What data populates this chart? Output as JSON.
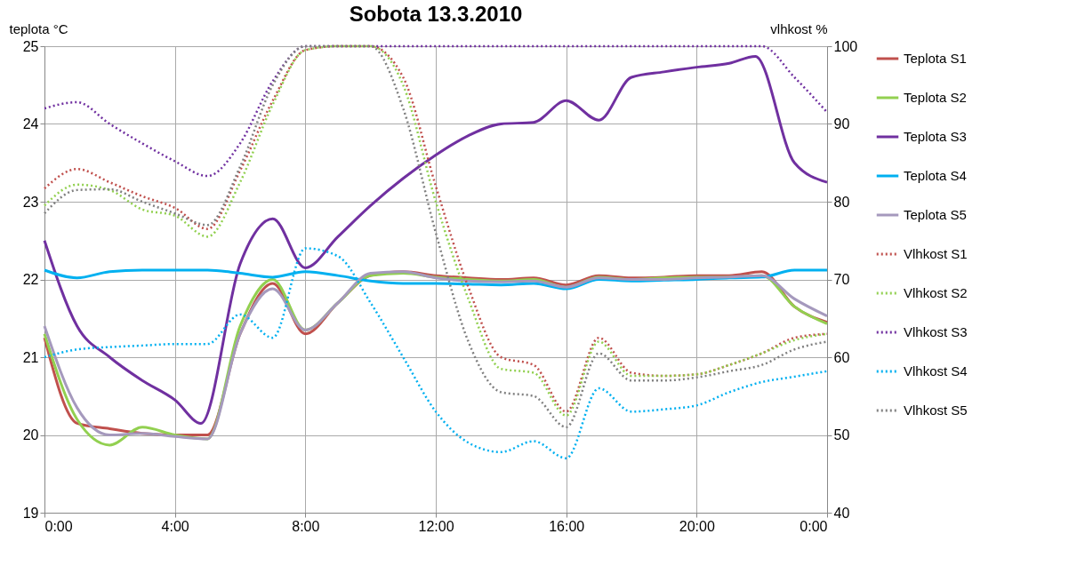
{
  "chart_data": {
    "type": "line",
    "title": "Sobota 13.3.2010",
    "ylabel": "teplota °C",
    "y2label": "vlhkost %",
    "x": [
      0,
      1,
      2,
      3,
      4,
      5,
      6,
      7,
      8,
      9,
      10,
      11,
      12,
      13,
      14,
      15,
      16,
      17,
      18,
      19,
      20,
      21,
      22,
      23,
      24
    ],
    "xlim": [
      0,
      24
    ],
    "xticks": [
      {
        "value": 0,
        "label": "0:00"
      },
      {
        "value": 4,
        "label": "4:00"
      },
      {
        "value": 8,
        "label": "8:00"
      },
      {
        "value": 12,
        "label": "12:00"
      },
      {
        "value": 16,
        "label": "16:00"
      },
      {
        "value": 20,
        "label": "20:00"
      },
      {
        "value": 24,
        "label": "0:00"
      }
    ],
    "ylim": [
      19,
      25
    ],
    "yticks": [
      19,
      20,
      21,
      22,
      23,
      24,
      25
    ],
    "y2lim": [
      40,
      100
    ],
    "y2ticks": [
      40,
      50,
      60,
      70,
      80,
      90,
      100
    ],
    "grid": true,
    "legend": "right",
    "marker": "none",
    "series": [
      {
        "name": "Teplota S1",
        "color": "#c0504d",
        "line_style": "solid",
        "values": [
          21.25,
          20.15,
          20.08,
          20.02,
          20.0,
          20.0,
          21.3,
          21.95,
          21.3,
          21.7,
          22.05,
          22.1,
          22.05,
          22.02,
          22.0,
          22.02,
          21.93,
          22.05,
          22.02,
          22.03,
          22.05,
          22.05,
          22.1,
          21.65,
          21.45
        ]
      },
      {
        "name": "Teplota S2",
        "color": "#92d050",
        "line_style": "solid",
        "values": [
          21.3,
          20.2,
          19.87,
          20.1,
          20.0,
          19.95,
          21.4,
          22.0,
          21.35,
          21.7,
          22.05,
          22.08,
          22.03,
          22.0,
          21.98,
          22.0,
          21.9,
          22.03,
          22.0,
          22.02,
          22.03,
          22.03,
          22.05,
          21.65,
          21.43
        ]
      },
      {
        "name": "Teplota S3",
        "color": "#7030a0",
        "line_style": "solid",
        "x": [
          0,
          1,
          2,
          3,
          4,
          4.8,
          6,
          7,
          8,
          9,
          10,
          11,
          12,
          13,
          14,
          15,
          16,
          17,
          18,
          19,
          20,
          21,
          21.8,
          23,
          24
        ],
        "values": [
          22.5,
          21.4,
          21.0,
          20.7,
          20.45,
          20.15,
          22.2,
          22.78,
          22.15,
          22.55,
          22.95,
          23.3,
          23.6,
          23.85,
          24.0,
          24.02,
          24.3,
          24.05,
          24.6,
          24.67,
          24.73,
          24.78,
          24.87,
          23.5,
          23.25
        ]
      },
      {
        "name": "Teplota S4",
        "color": "#00b0f0",
        "line_style": "solid",
        "values": [
          22.12,
          22.02,
          22.1,
          22.12,
          22.12,
          22.12,
          22.08,
          22.03,
          22.1,
          22.05,
          21.98,
          21.95,
          21.95,
          21.94,
          21.93,
          21.95,
          21.88,
          22.0,
          21.98,
          21.99,
          22.0,
          22.02,
          22.03,
          22.12,
          22.12
        ]
      },
      {
        "name": "Teplota S5",
        "color": "#a599bd",
        "line_style": "solid",
        "values": [
          21.4,
          20.35,
          20.0,
          20.02,
          19.98,
          19.95,
          21.3,
          21.88,
          21.35,
          21.7,
          22.08,
          22.1,
          22.02,
          21.98,
          21.97,
          21.98,
          21.9,
          22.02,
          22.0,
          22.0,
          22.02,
          22.03,
          22.05,
          21.75,
          21.53
        ]
      },
      {
        "name": "Vlhkost S1",
        "color": "#c0504d",
        "line_style": "dotted",
        "axis": "y2",
        "values": [
          81.7,
          84.2,
          82.5,
          80.7,
          79.2,
          76.5,
          84,
          93,
          99.5,
          100,
          100,
          96,
          82,
          69,
          60,
          59,
          53,
          62.5,
          58,
          57.6,
          57.8,
          59,
          60.5,
          62.5,
          63
        ]
      },
      {
        "name": "Vlhkost S2",
        "color": "#92d050",
        "line_style": "dotted",
        "axis": "y2",
        "values": [
          79.5,
          82.2,
          81.5,
          79.0,
          78.2,
          75.5,
          82.5,
          92.5,
          99.5,
          100,
          100,
          95,
          80,
          67.5,
          58.5,
          58,
          52.5,
          62,
          57.6,
          57.6,
          57.8,
          59,
          60.5,
          62.2,
          63
        ]
      },
      {
        "name": "Vlhkost S3",
        "color": "#7030a0",
        "line_style": "dotted",
        "axis": "y2",
        "values": [
          92,
          92.8,
          90,
          87.5,
          85.2,
          83.3,
          87.5,
          95.5,
          100,
          100,
          100,
          100,
          100,
          100,
          100,
          100,
          100,
          100,
          100,
          100,
          100,
          100,
          100,
          96,
          91.5
        ]
      },
      {
        "name": "Vlhkost S4",
        "color": "#00b0f0",
        "line_style": "dotted",
        "axis": "y2",
        "values": [
          60,
          61,
          61.3,
          61.5,
          61.7,
          61.7,
          65.5,
          62.5,
          74,
          73,
          67,
          60,
          53,
          49,
          47.8,
          49.2,
          47,
          56,
          53,
          53.3,
          53.8,
          55.5,
          56.8,
          57.5,
          58.2
        ]
      },
      {
        "name": "Vlhkost S5",
        "color": "#808080",
        "line_style": "dotted",
        "axis": "y2",
        "values": [
          78.5,
          81.5,
          81.6,
          80,
          78.5,
          77,
          84.5,
          95,
          100,
          100,
          100,
          92,
          76,
          62,
          55.5,
          55,
          51,
          60.5,
          57,
          57,
          57.4,
          58.2,
          59,
          61,
          62
        ]
      }
    ]
  }
}
